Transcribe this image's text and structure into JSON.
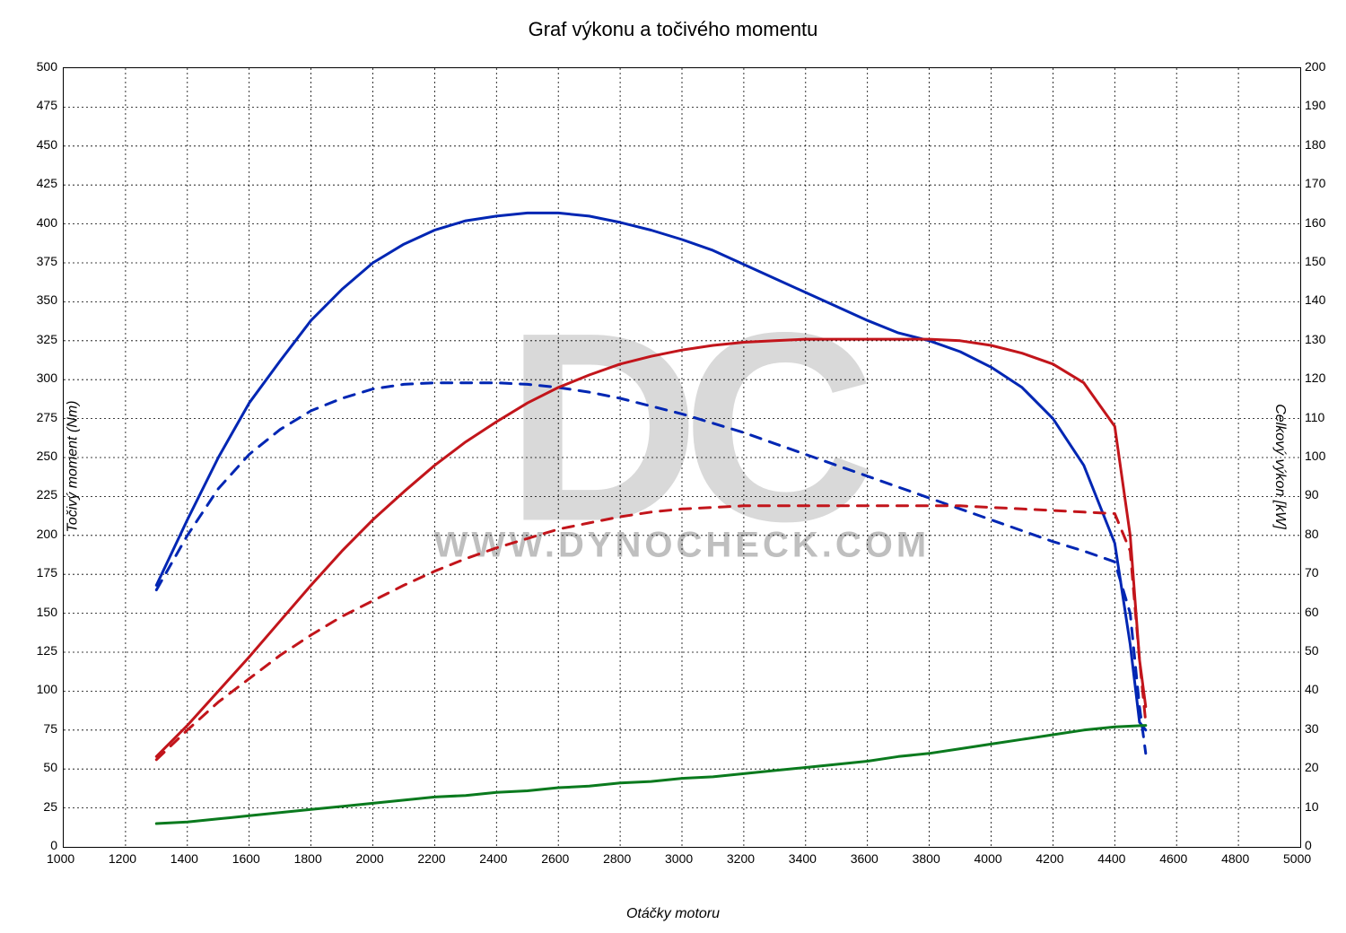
{
  "chart": {
    "type": "line",
    "title": "Graf výkonu a točivého momentu",
    "xlabel": "Otáčky motoru",
    "ylabel_left": "Točivý moment (Nm)",
    "ylabel_right": "Celkový výkon [kW]",
    "title_fontsize": 22,
    "label_fontsize": 16,
    "tick_fontsize": 14,
    "background_color": "#ffffff",
    "grid_color": "#000000",
    "grid_dash": "2,3",
    "plot_border_color": "#000000",
    "watermark_main": "DC",
    "watermark_sub": "WWW.DYNOCHECK.COM",
    "watermark_color_main": "#d9d9d9",
    "watermark_color_sub": "#bfbfbf",
    "x_axis": {
      "min": 1000,
      "max": 5000,
      "tick_step": 200,
      "ticks": [
        1000,
        1200,
        1400,
        1600,
        1800,
        2000,
        2200,
        2400,
        2600,
        2800,
        3000,
        3200,
        3400,
        3600,
        3800,
        4000,
        4200,
        4400,
        4600,
        4800,
        5000
      ]
    },
    "y_axis_left": {
      "min": 0,
      "max": 500,
      "tick_step": 25,
      "ticks": [
        0,
        25,
        50,
        75,
        100,
        125,
        150,
        175,
        200,
        225,
        250,
        275,
        300,
        325,
        350,
        375,
        400,
        425,
        450,
        475,
        500
      ]
    },
    "y_axis_right": {
      "min": 0,
      "max": 200,
      "tick_step": 10,
      "ticks": [
        0,
        10,
        20,
        30,
        40,
        50,
        60,
        70,
        80,
        90,
        100,
        110,
        120,
        130,
        140,
        150,
        160,
        170,
        180,
        190,
        200
      ]
    },
    "series": [
      {
        "name": "torque_tuned",
        "axis": "left",
        "color": "#0026b3",
        "line_width": 3,
        "dash": "none",
        "points": [
          [
            1300,
            168
          ],
          [
            1400,
            210
          ],
          [
            1500,
            250
          ],
          [
            1600,
            285
          ],
          [
            1700,
            312
          ],
          [
            1800,
            338
          ],
          [
            1900,
            358
          ],
          [
            2000,
            375
          ],
          [
            2100,
            387
          ],
          [
            2200,
            396
          ],
          [
            2300,
            402
          ],
          [
            2400,
            405
          ],
          [
            2500,
            407
          ],
          [
            2600,
            407
          ],
          [
            2700,
            405
          ],
          [
            2800,
            401
          ],
          [
            2900,
            396
          ],
          [
            3000,
            390
          ],
          [
            3100,
            383
          ],
          [
            3200,
            374
          ],
          [
            3300,
            365
          ],
          [
            3400,
            356
          ],
          [
            3500,
            347
          ],
          [
            3600,
            338
          ],
          [
            3700,
            330
          ],
          [
            3800,
            325
          ],
          [
            3900,
            318
          ],
          [
            4000,
            308
          ],
          [
            4100,
            295
          ],
          [
            4200,
            275
          ],
          [
            4300,
            245
          ],
          [
            4400,
            195
          ],
          [
            4450,
            130
          ],
          [
            4480,
            80
          ],
          [
            4500,
            75
          ]
        ]
      },
      {
        "name": "torque_stock",
        "axis": "left",
        "color": "#0026b3",
        "line_width": 3,
        "dash": "12,10",
        "points": [
          [
            1300,
            165
          ],
          [
            1400,
            200
          ],
          [
            1500,
            230
          ],
          [
            1600,
            252
          ],
          [
            1700,
            268
          ],
          [
            1800,
            280
          ],
          [
            1900,
            288
          ],
          [
            2000,
            294
          ],
          [
            2100,
            297
          ],
          [
            2200,
            298
          ],
          [
            2300,
            298
          ],
          [
            2400,
            298
          ],
          [
            2500,
            297
          ],
          [
            2600,
            295
          ],
          [
            2700,
            292
          ],
          [
            2800,
            288
          ],
          [
            2900,
            283
          ],
          [
            3000,
            278
          ],
          [
            3100,
            272
          ],
          [
            3200,
            266
          ],
          [
            3300,
            259
          ],
          [
            3400,
            252
          ],
          [
            3500,
            245
          ],
          [
            3600,
            238
          ],
          [
            3700,
            231
          ],
          [
            3800,
            224
          ],
          [
            3900,
            217
          ],
          [
            4000,
            210
          ],
          [
            4100,
            203
          ],
          [
            4200,
            196
          ],
          [
            4300,
            190
          ],
          [
            4400,
            183
          ],
          [
            4450,
            150
          ],
          [
            4480,
            90
          ],
          [
            4500,
            60
          ]
        ]
      },
      {
        "name": "power_tuned",
        "axis": "left",
        "color": "#c2151b",
        "line_width": 3,
        "dash": "none",
        "points": [
          [
            1300,
            58
          ],
          [
            1400,
            78
          ],
          [
            1500,
            100
          ],
          [
            1600,
            122
          ],
          [
            1700,
            145
          ],
          [
            1800,
            168
          ],
          [
            1900,
            190
          ],
          [
            2000,
            210
          ],
          [
            2100,
            228
          ],
          [
            2200,
            245
          ],
          [
            2300,
            260
          ],
          [
            2400,
            273
          ],
          [
            2500,
            285
          ],
          [
            2600,
            295
          ],
          [
            2700,
            303
          ],
          [
            2800,
            310
          ],
          [
            2900,
            315
          ],
          [
            3000,
            319
          ],
          [
            3100,
            322
          ],
          [
            3200,
            324
          ],
          [
            3300,
            325
          ],
          [
            3400,
            326
          ],
          [
            3500,
            326
          ],
          [
            3600,
            326
          ],
          [
            3700,
            326
          ],
          [
            3800,
            326
          ],
          [
            3900,
            325
          ],
          [
            4000,
            322
          ],
          [
            4100,
            317
          ],
          [
            4200,
            310
          ],
          [
            4300,
            298
          ],
          [
            4400,
            270
          ],
          [
            4450,
            200
          ],
          [
            4480,
            120
          ],
          [
            4500,
            90
          ]
        ]
      },
      {
        "name": "power_stock",
        "axis": "left",
        "color": "#c2151b",
        "line_width": 3,
        "dash": "12,10",
        "points": [
          [
            1300,
            56
          ],
          [
            1400,
            75
          ],
          [
            1500,
            93
          ],
          [
            1600,
            108
          ],
          [
            1700,
            123
          ],
          [
            1800,
            136
          ],
          [
            1900,
            148
          ],
          [
            2000,
            158
          ],
          [
            2100,
            168
          ],
          [
            2200,
            177
          ],
          [
            2300,
            185
          ],
          [
            2400,
            192
          ],
          [
            2500,
            198
          ],
          [
            2600,
            204
          ],
          [
            2700,
            208
          ],
          [
            2800,
            212
          ],
          [
            2900,
            215
          ],
          [
            3000,
            217
          ],
          [
            3100,
            218
          ],
          [
            3200,
            219
          ],
          [
            3300,
            219
          ],
          [
            3400,
            219
          ],
          [
            3500,
            219
          ],
          [
            3600,
            219
          ],
          [
            3700,
            219
          ],
          [
            3800,
            219
          ],
          [
            3900,
            219
          ],
          [
            4000,
            218
          ],
          [
            4100,
            217
          ],
          [
            4200,
            216
          ],
          [
            4300,
            215
          ],
          [
            4400,
            214
          ],
          [
            4450,
            190
          ],
          [
            4480,
            120
          ],
          [
            4500,
            80
          ]
        ]
      },
      {
        "name": "loss_power",
        "axis": "left",
        "color": "#0a7a1e",
        "line_width": 3,
        "dash": "none",
        "points": [
          [
            1300,
            15
          ],
          [
            1400,
            16
          ],
          [
            1500,
            18
          ],
          [
            1600,
            20
          ],
          [
            1700,
            22
          ],
          [
            1800,
            24
          ],
          [
            1900,
            26
          ],
          [
            2000,
            28
          ],
          [
            2100,
            30
          ],
          [
            2200,
            32
          ],
          [
            2300,
            33
          ],
          [
            2400,
            35
          ],
          [
            2500,
            36
          ],
          [
            2600,
            38
          ],
          [
            2700,
            39
          ],
          [
            2800,
            41
          ],
          [
            2900,
            42
          ],
          [
            3000,
            44
          ],
          [
            3100,
            45
          ],
          [
            3200,
            47
          ],
          [
            3300,
            49
          ],
          [
            3400,
            51
          ],
          [
            3500,
            53
          ],
          [
            3600,
            55
          ],
          [
            3700,
            58
          ],
          [
            3800,
            60
          ],
          [
            3900,
            63
          ],
          [
            4000,
            66
          ],
          [
            4100,
            69
          ],
          [
            4200,
            72
          ],
          [
            4300,
            75
          ],
          [
            4400,
            77
          ],
          [
            4500,
            78
          ]
        ]
      }
    ]
  }
}
